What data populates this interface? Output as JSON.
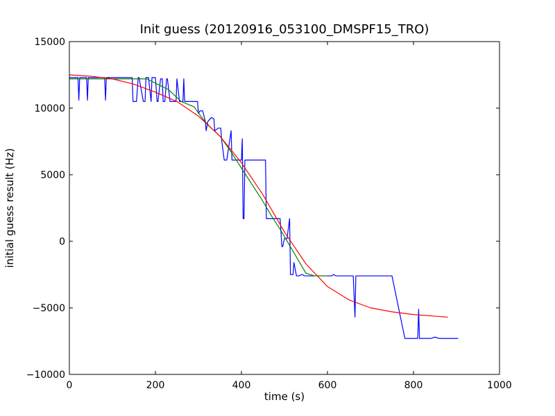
{
  "chart_data": {
    "type": "line",
    "title": "Init guess (20120916_053100_DMSPF15_TRO)",
    "xlabel": "time (s)",
    "ylabel": "initial guess result (Hz)",
    "xlim": [
      0,
      1000
    ],
    "ylim": [
      -10000,
      15000
    ],
    "xticks": [
      0,
      200,
      400,
      600,
      800,
      1000
    ],
    "yticks": [
      -10000,
      -5000,
      0,
      5000,
      10000,
      15000
    ],
    "xtick_labels": [
      "0",
      "200",
      "400",
      "600",
      "800",
      "1000"
    ],
    "ytick_labels": [
      "−10000",
      "−5000",
      "0",
      "5000",
      "10000",
      "15000"
    ],
    "grid": false,
    "legend": "none",
    "series": [
      {
        "color": "#0000ff",
        "x": [
          0,
          20,
          22,
          24,
          40,
          42,
          44,
          82,
          84,
          86,
          146,
          148,
          156,
          160,
          162,
          172,
          176,
          178,
          184,
          190,
          192,
          200,
          204,
          206,
          212,
          216,
          218,
          222,
          226,
          228,
          234,
          248,
          250,
          256,
          264,
          266,
          268,
          290,
          298,
          300,
          304,
          310,
          316,
          318,
          322,
          330,
          336,
          338,
          346,
          352,
          354,
          360,
          366,
          376,
          378,
          380,
          400,
          402,
          404,
          406,
          408,
          456,
          458,
          488,
          490,
          494,
          496,
          500,
          506,
          512,
          514,
          520,
          522,
          528,
          534,
          540,
          542,
          546,
          560,
          566,
          610,
          614,
          620,
          660,
          664,
          666,
          670,
          680,
          700,
          750,
          780,
          810,
          812,
          814,
          818,
          840,
          850,
          860,
          880,
          904
        ],
        "y": [
          12300,
          12300,
          10600,
          12300,
          12300,
          10600,
          12300,
          12300,
          10600,
          12300,
          12300,
          10500,
          10500,
          12300,
          12300,
          10500,
          10500,
          12300,
          12300,
          10500,
          12300,
          12300,
          10500,
          10500,
          12200,
          12200,
          10500,
          10500,
          12200,
          12200,
          10500,
          10500,
          12200,
          10500,
          10500,
          12200,
          10500,
          10500,
          10500,
          9600,
          9800,
          9800,
          9000,
          8300,
          9000,
          9300,
          9200,
          8300,
          8500,
          8500,
          7600,
          6100,
          6100,
          8300,
          6100,
          6100,
          6100,
          7700,
          1700,
          1700,
          6100,
          6100,
          1700,
          1700,
          1700,
          -400,
          -400,
          200,
          200,
          1700,
          -2500,
          -2500,
          -1600,
          -2600,
          -2600,
          -2500,
          -2500,
          -2600,
          -2600,
          -2600,
          -2600,
          -2500,
          -2600,
          -2600,
          -5700,
          -2600,
          -2600,
          -2600,
          -2600,
          -2600,
          -7300,
          -7300,
          -5100,
          -7300,
          -7300,
          -7300,
          -7200,
          -7300,
          -7300,
          -7300
        ]
      },
      {
        "color": "#008000",
        "x": [
          0,
          100,
          180,
          230,
          260,
          290,
          310,
          330,
          350,
          370,
          390,
          410,
          430,
          450,
          470,
          490,
          510,
          530,
          550,
          570,
          600
        ],
        "y": [
          12200,
          12200,
          12200,
          11400,
          10500,
          10100,
          9200,
          8500,
          7900,
          7000,
          6000,
          5000,
          4000,
          3000,
          1900,
          900,
          -200,
          -1300,
          -2400,
          -2600,
          -2600
        ]
      },
      {
        "color": "#ff0000",
        "x": [
          0,
          50,
          100,
          150,
          200,
          250,
          300,
          350,
          400,
          450,
          500,
          550,
          600,
          650,
          700,
          750,
          800,
          880
        ],
        "y": [
          12500,
          12400,
          12200,
          11800,
          11200,
          10500,
          9400,
          7900,
          5900,
          3500,
          700,
          -1700,
          -3400,
          -4400,
          -5000,
          -5300,
          -5500,
          -5700
        ]
      }
    ]
  }
}
